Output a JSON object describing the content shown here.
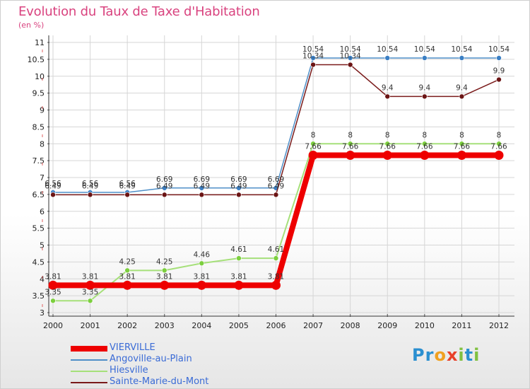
{
  "chart_data": {
    "type": "line",
    "title": "Evolution du Taux de Taxe d'Habitation",
    "subtitle": "(en %)",
    "xlabel": "",
    "ylabel": "",
    "x": [
      "2000",
      "2001",
      "2002",
      "2003",
      "2004",
      "2005",
      "2006",
      "2007",
      "2008",
      "2009",
      "2010",
      "2011",
      "2012"
    ],
    "ylim": [
      3,
      11
    ],
    "yticks": [
      "3",
      "3.5",
      "4",
      "4.5",
      "5",
      "5.5",
      "6",
      "6.5",
      "7",
      "7.5",
      "8",
      "8.5",
      "9",
      "9.5",
      "10",
      "10.5",
      "11"
    ],
    "grid": true,
    "legend_position": "bottom-left",
    "series": [
      {
        "name": "Angoville-au-Plain",
        "color": "#4f8fc8",
        "marker": "#3b7fc4",
        "width": 1.5,
        "values": [
          6.56,
          6.56,
          6.56,
          6.69,
          6.69,
          6.69,
          6.69,
          10.54,
          10.54,
          10.54,
          10.54,
          10.54,
          10.54
        ],
        "labels": [
          "6.56",
          "6.56",
          "6.56",
          "6.69",
          "6.69",
          "6.69",
          "6.69",
          "10.54",
          "10.54",
          "10.54",
          "10.54",
          "10.54",
          "10.54"
        ]
      },
      {
        "name": "Sainte-Marie-du-Mont",
        "color": "#7a1a1a",
        "marker": "#6b1414",
        "width": 1.5,
        "values": [
          6.49,
          6.49,
          6.49,
          6.49,
          6.49,
          6.49,
          6.49,
          10.34,
          10.34,
          9.4,
          9.4,
          9.4,
          9.9
        ],
        "labels": [
          "6.49",
          "6.49",
          "6.49",
          "6.49",
          "6.49",
          "6.49",
          "6.49",
          "10.34",
          "10.34",
          "9.4",
          "9.4",
          "9.4",
          "9.9"
        ]
      },
      {
        "name": "Hiesville",
        "color": "#a6e07a",
        "marker": "#7ccf3e",
        "width": 2,
        "values": [
          3.35,
          3.35,
          4.25,
          4.25,
          4.46,
          4.61,
          4.61,
          8,
          8,
          8,
          8,
          8,
          8
        ],
        "labels": [
          "3.35",
          "3.35",
          "4.25",
          "4.25",
          "4.46",
          "4.61",
          "4.61",
          "8",
          "8",
          "8",
          "8",
          "8",
          "8"
        ]
      },
      {
        "name": "VIERVILLE",
        "color": "#ee0000",
        "marker": "#ee0000",
        "width": 8,
        "values": [
          3.81,
          3.81,
          3.81,
          3.81,
          3.81,
          3.81,
          3.81,
          7.66,
          7.66,
          7.66,
          7.66,
          7.66,
          7.66
        ],
        "labels": [
          "3.81",
          "3.81",
          "3.81",
          "3.81",
          "3.81",
          "3.81",
          "3.81",
          "7.66",
          "7.66",
          "7.66",
          "7.66",
          "7.66",
          "7.66"
        ]
      }
    ],
    "legend_order": [
      "VIERVILLE",
      "Angoville-au-Plain",
      "Hiesville",
      "Sainte-Marie-du-Mont"
    ]
  },
  "logo": {
    "letters": [
      "P",
      "r",
      "o",
      "x",
      "i",
      "t",
      "i"
    ],
    "colors": [
      "#2a8fd0",
      "#2a8fd0",
      "#f0a020",
      "#e8402a",
      "#80c040",
      "#2a8fd0",
      "#80c040"
    ]
  }
}
